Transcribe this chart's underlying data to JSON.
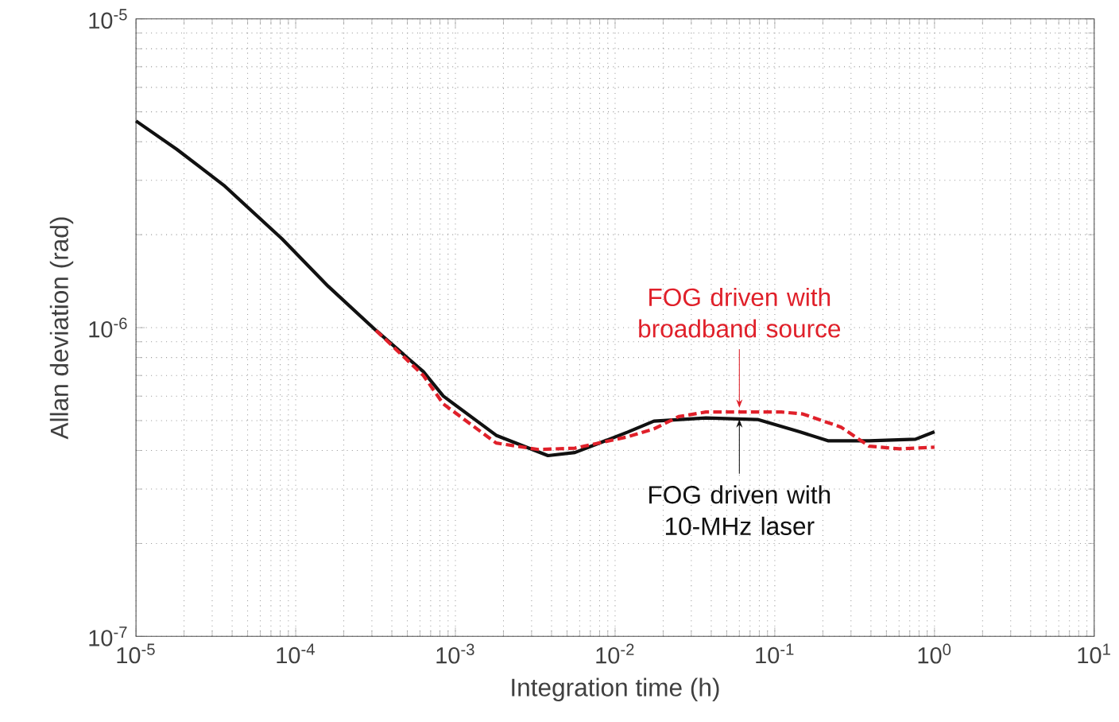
{
  "chart_data": {
    "type": "line",
    "xlabel": "Integration time (h)",
    "ylabel": "Allan deviation (rad)",
    "log": "xy",
    "grid": true,
    "xlim": [
      1e-05,
      10
    ],
    "ylim": [
      1e-07,
      1e-05
    ],
    "xticks": [
      {
        "value": 1e-05,
        "label": "10$^{-5}$"
      },
      {
        "value": 0.0001,
        "label": "10$^{-4}$"
      },
      {
        "value": 0.001,
        "label": "10$^{-3}$"
      },
      {
        "value": 0.01,
        "label": "10$^{-2}$"
      },
      {
        "value": 0.1,
        "label": "10$^{-1}$"
      },
      {
        "value": 1,
        "label": "10$^{0}$"
      },
      {
        "value": 10,
        "label": "10$^{1}$"
      }
    ],
    "yticks": [
      {
        "value": 1e-07,
        "label": "10$^{-7}$"
      },
      {
        "value": 1e-06,
        "label": "10$^{-6}$"
      },
      {
        "value": 1e-05,
        "label": "10$^{-5}$"
      }
    ],
    "series": [
      {
        "color": "#e0202a",
        "line_style": "dashed",
        "x": [
          0.000318,
          0.00063,
          0.00084,
          0.0018,
          0.0033,
          0.0056,
          0.012,
          0.0175,
          0.025,
          0.037,
          0.11,
          0.15,
          0.26,
          0.39,
          0.6,
          1
        ],
        "values": [
          9.8e-07,
          7e-07,
          5.66e-07,
          4.23e-07,
          4.03e-07,
          4.07e-07,
          4.43e-07,
          4.7e-07,
          5.15e-07,
          5.33e-07,
          5.33e-07,
          5.25e-07,
          4.76e-07,
          4.13e-07,
          4.05e-07,
          4.1e-07
        ]
      },
      {
        "color": "#111111",
        "line_style": "solid",
        "x": [
          1e-05,
          1.8e-05,
          3.55e-05,
          8.2e-05,
          0.00016,
          0.000318,
          0.00063,
          0.00084,
          0.0018,
          0.0038,
          0.0056,
          0.012,
          0.0175,
          0.037,
          0.078,
          0.143,
          0.215,
          0.39,
          0.76,
          1
        ],
        "values": [
          4.67e-06,
          3.78e-06,
          2.89e-06,
          1.94e-06,
          1.36e-06,
          9.8e-07,
          7.2e-07,
          6e-07,
          4.48e-07,
          3.85e-07,
          3.94e-07,
          4.59e-07,
          4.98e-07,
          5.1e-07,
          5.04e-07,
          4.6e-07,
          4.3e-07,
          4.3e-07,
          4.35e-07,
          4.6e-07
        ]
      }
    ],
    "annotations": [
      {
        "text": "FOG driven with broadband source",
        "x": 0.06,
        "y": 5.5e-07
      },
      {
        "text": "FOG driven with 10-MHz laser",
        "x": 0.06,
        "y": 5.05e-07
      }
    ]
  }
}
